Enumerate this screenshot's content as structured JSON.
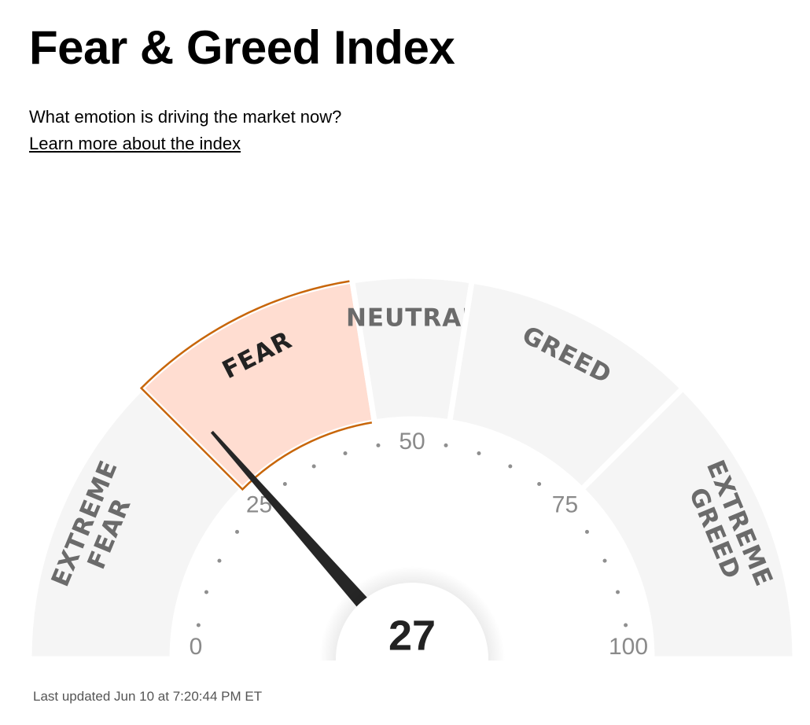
{
  "chart_data": {
    "type": "gauge",
    "title": "Fear & Greed Index",
    "subtitle": "What emotion is driving the market now?",
    "link": "Learn more about the index",
    "footer": "Last updated Jun 10 at 7:20:44 PM ET",
    "value": 27,
    "lim": [
      0,
      100
    ],
    "ticks": [
      0,
      25,
      50,
      75,
      100
    ],
    "minor_ticks": [
      5,
      10,
      15,
      20,
      30,
      35,
      40,
      45,
      55,
      60,
      65,
      70,
      80,
      85,
      90,
      95
    ],
    "color": "#f5f5f5",
    "active_color": "#ffddd1",
    "active_stroke": "#c8660a",
    "segments": [
      {
        "label": [
          "EXTREME",
          "FEAR"
        ],
        "from": 0,
        "to": 25
      },
      {
        "label": [
          "FEAR"
        ],
        "from": 25,
        "to": 45
      },
      {
        "label": [
          "NEUTRAL"
        ],
        "from": 45,
        "to": 55
      },
      {
        "label": [
          "GREED"
        ],
        "from": 55,
        "to": 75
      },
      {
        "label": [
          "EXTREME",
          "GREED"
        ],
        "from": 75,
        "to": 100
      }
    ]
  }
}
